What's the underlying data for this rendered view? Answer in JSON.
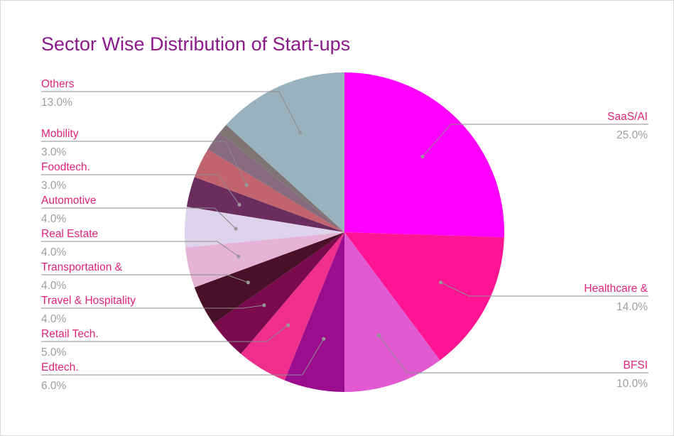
{
  "chart_data": {
    "type": "pie",
    "title": "Sector Wise Distribution of Start-ups",
    "slices": [
      {
        "label": "SaaS/AI",
        "value": 25.0,
        "pct_text": "25.0%",
        "color": "#ff00ff"
      },
      {
        "label": "Healthcare &",
        "value": 14.0,
        "pct_text": "14.0%",
        "color": "#ff1493"
      },
      {
        "label": "BFSI",
        "value": 10.0,
        "pct_text": "10.0%",
        "color": "#e15ad2"
      },
      {
        "label": "Edtech.",
        "value": 6.0,
        "pct_text": "6.0%",
        "color": "#9b0d8f"
      },
      {
        "label": "Retail Tech.",
        "value": 5.0,
        "pct_text": "5.0%",
        "color": "#f02f8c"
      },
      {
        "label": "Travel & Hospitality",
        "value": 4.0,
        "pct_text": "4.0%",
        "color": "#7a0a4e"
      },
      {
        "label": "Transportation &",
        "value": 4.0,
        "pct_text": "4.0%",
        "color": "#4a1028"
      },
      {
        "label": "Real Estate",
        "value": 4.0,
        "pct_text": "4.0%",
        "color": "#e5b3d5"
      },
      {
        "label": "Automotive",
        "value": 4.0,
        "pct_text": "4.0%",
        "color": "#ddd3ea"
      },
      {
        "label": "Foodtech.",
        "value": 3.0,
        "pct_text": "3.0%",
        "color": "#6a2d5e"
      },
      {
        "label": "Mobility",
        "value": 3.0,
        "pct_text": "3.0%",
        "color": "#c2646e"
      },
      {
        "label": "",
        "value": 2.0,
        "pct_text": "",
        "color": "#866a7e"
      },
      {
        "label": "",
        "value": 1.0,
        "pct_text": "",
        "color": "#7e7474"
      },
      {
        "label": "Others",
        "value": 13.0,
        "pct_text": "13.0%",
        "color": "#99b2bd"
      }
    ]
  }
}
